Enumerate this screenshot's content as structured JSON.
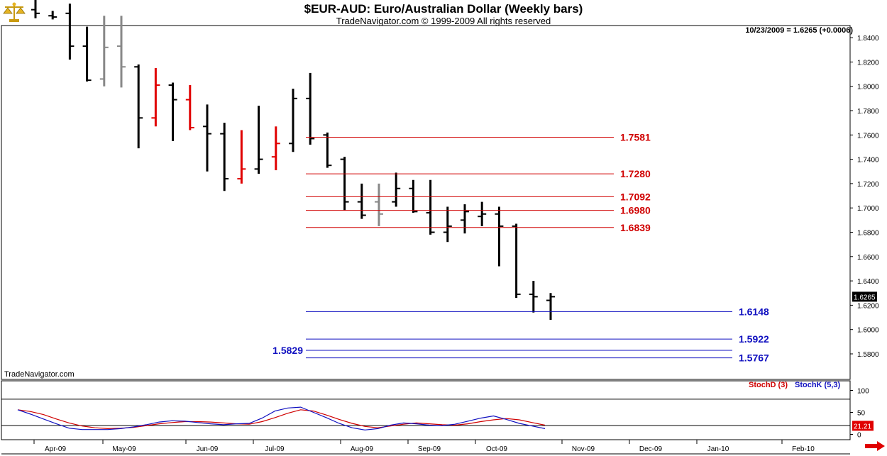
{
  "header": {
    "title": "$EUR-AUD:  Euro/Australian Dollar  (Weekly bars)",
    "subtitle": "TradeNavigator.com © 1999-2009 All rights reserved",
    "readout": "10/23/2009 = 1.6265 (+0.0006)",
    "watermark": "TradeNavigator.com"
  },
  "icons": {
    "logo": "balance-scale-icon",
    "scroll": "arrow-right-icon"
  },
  "colors": {
    "up_bar": "#000000",
    "down_bar": "#e00000",
    "neutral_bar": "#888888",
    "resistance": "#d00000",
    "support": "#1010c0"
  },
  "chart_data": [
    {
      "type": "ohlc",
      "panel": "price",
      "ylim": [
        1.57,
        1.86
      ],
      "yticks": [
        1.58,
        1.6,
        1.62,
        1.64,
        1.66,
        1.68,
        1.7,
        1.72,
        1.74,
        1.76,
        1.78,
        1.8,
        1.82,
        1.84
      ],
      "ytick_labels": [
        "1.5800",
        "1.6000",
        "1.6200",
        "1.6400",
        "1.6600",
        "1.6800",
        "1.7000",
        "1.7200",
        "1.7400",
        "1.7600",
        "1.7800",
        "1.8000",
        "1.8200",
        "1.8400"
      ],
      "x_labels": [
        "Apr-09",
        "May-09",
        "Jun-09",
        "Jul-09",
        "Aug-09",
        "Sep-09",
        "Oct-09",
        "Nov-09",
        "Dec-09",
        "Jan-10",
        "Feb-10"
      ],
      "last_price_label": "1.6265",
      "bars": [
        {
          "o": 1.863,
          "h": 1.875,
          "l": 1.856,
          "c": 1.86,
          "col": "up_bar"
        },
        {
          "o": 1.858,
          "h": 1.862,
          "l": 1.855,
          "c": 1.857,
          "col": "up_bar"
        },
        {
          "o": 1.86,
          "h": 1.868,
          "l": 1.822,
          "c": 1.833,
          "col": "up_bar"
        },
        {
          "o": 1.833,
          "h": 1.849,
          "l": 1.804,
          "c": 1.805,
          "col": "up_bar"
        },
        {
          "o": 1.806,
          "h": 1.858,
          "l": 1.8,
          "c": 1.832,
          "col": "neutral_bar"
        },
        {
          "o": 1.833,
          "h": 1.858,
          "l": 1.799,
          "c": 1.816,
          "col": "neutral_bar"
        },
        {
          "o": 1.816,
          "h": 1.818,
          "l": 1.749,
          "c": 1.774,
          "col": "up_bar"
        },
        {
          "o": 1.774,
          "h": 1.815,
          "l": 1.767,
          "c": 1.801,
          "col": "down_bar"
        },
        {
          "o": 1.801,
          "h": 1.803,
          "l": 1.755,
          "c": 1.789,
          "col": "up_bar"
        },
        {
          "o": 1.789,
          "h": 1.801,
          "l": 1.764,
          "c": 1.766,
          "col": "down_bar"
        },
        {
          "o": 1.767,
          "h": 1.785,
          "l": 1.73,
          "c": 1.761,
          "col": "up_bar"
        },
        {
          "o": 1.761,
          "h": 1.77,
          "l": 1.714,
          "c": 1.724,
          "col": "up_bar"
        },
        {
          "o": 1.724,
          "h": 1.764,
          "l": 1.72,
          "c": 1.732,
          "col": "down_bar"
        },
        {
          "o": 1.732,
          "h": 1.784,
          "l": 1.728,
          "c": 1.74,
          "col": "up_bar"
        },
        {
          "o": 1.742,
          "h": 1.767,
          "l": 1.731,
          "c": 1.753,
          "col": "down_bar"
        },
        {
          "o": 1.753,
          "h": 1.798,
          "l": 1.746,
          "c": 1.79,
          "col": "up_bar"
        },
        {
          "o": 1.79,
          "h": 1.811,
          "l": 1.752,
          "c": 1.757,
          "col": "up_bar"
        },
        {
          "o": 1.76,
          "h": 1.762,
          "l": 1.733,
          "c": 1.735,
          "col": "up_bar"
        },
        {
          "o": 1.74,
          "h": 1.742,
          "l": 1.698,
          "c": 1.705,
          "col": "up_bar"
        },
        {
          "o": 1.705,
          "h": 1.72,
          "l": 1.691,
          "c": 1.694,
          "col": "up_bar"
        },
        {
          "o": 1.705,
          "h": 1.72,
          "l": 1.685,
          "c": 1.695,
          "col": "neutral_bar"
        },
        {
          "o": 1.705,
          "h": 1.729,
          "l": 1.701,
          "c": 1.716,
          "col": "up_bar"
        },
        {
          "o": 1.716,
          "h": 1.723,
          "l": 1.696,
          "c": 1.697,
          "col": "up_bar"
        },
        {
          "o": 1.696,
          "h": 1.723,
          "l": 1.678,
          "c": 1.68,
          "col": "up_bar"
        },
        {
          "o": 1.68,
          "h": 1.701,
          "l": 1.672,
          "c": 1.685,
          "col": "up_bar"
        },
        {
          "o": 1.69,
          "h": 1.703,
          "l": 1.679,
          "c": 1.697,
          "col": "up_bar"
        },
        {
          "o": 1.693,
          "h": 1.705,
          "l": 1.685,
          "c": 1.695,
          "col": "up_bar"
        },
        {
          "o": 1.695,
          "h": 1.701,
          "l": 1.652,
          "c": 1.685,
          "col": "up_bar"
        },
        {
          "o": 1.685,
          "h": 1.687,
          "l": 1.626,
          "c": 1.629,
          "col": "up_bar"
        },
        {
          "o": 1.629,
          "h": 1.64,
          "l": 1.614,
          "c": 1.627,
          "col": "up_bar"
        },
        {
          "o": 1.624,
          "h": 1.63,
          "l": 1.608,
          "c": 1.627,
          "col": "up_bar"
        }
      ],
      "levels": [
        {
          "value": 1.7581,
          "label": "1.7581",
          "col": "resistance"
        },
        {
          "value": 1.728,
          "label": "1.7280",
          "col": "resistance"
        },
        {
          "value": 1.7092,
          "label": "1.7092",
          "col": "resistance"
        },
        {
          "value": 1.698,
          "label": "1.6980",
          "col": "resistance"
        },
        {
          "value": 1.6839,
          "label": "1.6839",
          "col": "resistance"
        },
        {
          "value": 1.6148,
          "label": "1.6148",
          "col": "support"
        },
        {
          "value": 1.5922,
          "label": "1.5922",
          "col": "support"
        },
        {
          "value": 1.5829,
          "label": "1.5829",
          "col": "support",
          "label_side": "left"
        },
        {
          "value": 1.5767,
          "label": "1.5767",
          "col": "support"
        }
      ]
    },
    {
      "type": "line",
      "panel": "stochastic",
      "ylim": [
        -5,
        108
      ],
      "yticks": [
        0,
        50,
        100
      ],
      "ytick_labels": [
        "0",
        "50",
        "100"
      ],
      "reference_lines": [
        80,
        20
      ],
      "last_value_label": "21.21",
      "series": [
        {
          "name": "StochD (3)",
          "col": "resistance",
          "values": [
            56,
            52,
            45,
            35,
            26,
            19,
            15,
            13,
            14,
            16,
            20,
            24,
            27,
            29,
            29,
            28,
            26,
            24,
            23,
            29,
            38,
            48,
            56,
            53,
            44,
            34,
            25,
            18,
            15,
            19,
            23,
            26,
            24,
            22,
            21,
            24,
            29,
            33,
            36,
            33,
            27,
            21
          ]
        },
        {
          "name": "StochK (5,3)",
          "col": "support",
          "values": [
            56,
            46,
            35,
            24,
            14,
            11,
            11,
            11,
            13,
            17,
            22,
            28,
            31,
            30,
            27,
            24,
            22,
            24,
            25,
            37,
            53,
            60,
            62,
            50,
            38,
            25,
            15,
            10,
            13,
            21,
            26,
            24,
            21,
            20,
            23,
            30,
            37,
            42,
            34,
            25,
            19,
            13
          ]
        }
      ]
    }
  ]
}
